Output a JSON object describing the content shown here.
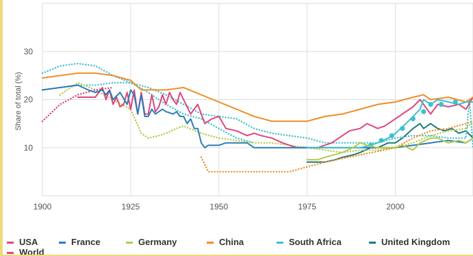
{
  "chart_data": {
    "type": "line",
    "title": "",
    "xlabel": "",
    "ylabel": "Share of total (%)",
    "xlim": [
      1900,
      2022
    ],
    "ylim": [
      0,
      40
    ],
    "xticks": [
      1900,
      1925,
      1950,
      1975,
      2000
    ],
    "yticks": [
      10,
      20,
      30
    ],
    "grid": true,
    "legend_position": "bottom",
    "series": [
      {
        "name": "USA",
        "color": "#e0457b",
        "style": "solid",
        "x": [
          1910,
          1915,
          1917,
          1918,
          1919,
          1920,
          1921,
          1922,
          1923,
          1924,
          1925,
          1926,
          1927,
          1928,
          1929,
          1930,
          1931,
          1932,
          1933,
          1934,
          1935,
          1936,
          1937,
          1938,
          1939,
          1940,
          1942,
          1944,
          1946,
          1948,
          1950,
          1952,
          1955,
          1958,
          1960,
          1962,
          1965,
          1968,
          1970,
          1972,
          1975,
          1978,
          1980,
          1982,
          1985,
          1987,
          1990,
          1992,
          1995,
          1997,
          2000,
          2002,
          2005,
          2007,
          2010,
          2012,
          2015,
          2018,
          2020,
          2022
        ],
        "y": [
          20.5,
          20.5,
          22.5,
          20,
          22,
          19,
          20.5,
          18.5,
          19,
          21.5,
          18,
          22,
          17,
          21.5,
          17,
          17,
          21,
          17.5,
          18.5,
          21,
          19,
          21.5,
          20,
          19,
          21.5,
          20,
          17,
          19,
          15,
          16,
          16.5,
          14,
          13.5,
          12.5,
          13,
          12.5,
          12,
          11,
          10.5,
          10,
          10,
          10,
          10.5,
          11,
          12.5,
          13.5,
          14,
          15,
          14,
          14.5,
          16,
          17,
          18.5,
          20,
          17,
          19,
          18.5,
          19,
          18,
          20.5
        ]
      },
      {
        "name": "World",
        "color": "#e0457b",
        "style": "dotted",
        "x": [
          1900,
          1905,
          1910,
          1915,
          1920
        ],
        "y": [
          15.5,
          19,
          21,
          22,
          22.5
        ]
      },
      {
        "name": "France",
        "color": "#2c7bb6",
        "style": "solid",
        "x": [
          1900,
          1905,
          1910,
          1913,
          1915,
          1917,
          1918,
          1919,
          1920,
          1922,
          1924,
          1925,
          1926,
          1927,
          1928,
          1929,
          1930,
          1931,
          1932,
          1933,
          1934,
          1935,
          1937,
          1938,
          1939,
          1940,
          1941,
          1942,
          1943,
          1944,
          1945,
          1946,
          1947,
          1948,
          1950,
          1952,
          1955,
          1958,
          1960,
          1965,
          1970,
          1975,
          1978,
          1980,
          1985,
          1990,
          1995,
          2000,
          2005,
          2010,
          2015,
          2020,
          2022
        ],
        "y": [
          22,
          22.5,
          23,
          22,
          21.5,
          22,
          21,
          22,
          20,
          21.5,
          19,
          22,
          21,
          17,
          21,
          16.5,
          16.5,
          18,
          17,
          17.5,
          18,
          17.5,
          17,
          17.5,
          16.5,
          16.5,
          15,
          16,
          14,
          14,
          11,
          10,
          10.5,
          10.5,
          10.5,
          11,
          11,
          11,
          10,
          10,
          10,
          10,
          10,
          10,
          10,
          10,
          10,
          10,
          10.5,
          11,
          11.5,
          11,
          12
        ]
      },
      {
        "name": "Germany",
        "color": "#b5c94a",
        "style": "solid",
        "x": [
          1975,
          1978,
          1980,
          1985,
          1988,
          1990,
          1992,
          1995,
          2000,
          2002,
          2005,
          2007,
          2010,
          2012,
          2015,
          2018,
          2020,
          2022
        ],
        "y": [
          7.5,
          7.5,
          8,
          9,
          10,
          11,
          10.5,
          10,
          10,
          10.5,
          9.5,
          11,
          12,
          12,
          11,
          11.5,
          11,
          12
        ]
      },
      {
        "name": "Germany (dotted)",
        "color": "#b5c94a",
        "style": "dotted",
        "x": [
          1905,
          1910,
          1915,
          1920,
          1925,
          1928,
          1930,
          1933,
          1935,
          1938,
          1940,
          1945,
          1950,
          1955,
          1960,
          1965,
          1970,
          1975,
          1980,
          1985,
          1990,
          1995,
          2000,
          2005,
          2010,
          2015,
          2020,
          2022
        ],
        "y": [
          21,
          23.5,
          22,
          20,
          18,
          13,
          12,
          12.5,
          13,
          14,
          14.5,
          13,
          12,
          11.5,
          11,
          11,
          10.5,
          10,
          9.5,
          9,
          9.5,
          9.5,
          10,
          11,
          12.5,
          13.5,
          14,
          15.5
        ]
      },
      {
        "name": "China",
        "color": "#f28c28",
        "style": "solid",
        "x": [
          1900,
          1905,
          1910,
          1915,
          1920,
          1925,
          1928,
          1930,
          1935,
          1940,
          1945,
          1950,
          1955,
          1960,
          1965,
          1970,
          1975,
          1980,
          1985,
          1990,
          1995,
          2000,
          2005,
          2008,
          2010,
          2015,
          2020,
          2022
        ],
        "y": [
          24.5,
          25,
          25.5,
          25.5,
          25,
          24,
          22,
          22,
          22,
          22.5,
          21,
          19.5,
          18,
          16.5,
          15.5,
          15.5,
          15.5,
          16.5,
          17,
          18,
          19,
          19.5,
          20.5,
          21,
          20,
          20.5,
          19.5,
          20.5
        ]
      },
      {
        "name": "China (dotted)",
        "color": "#f28c28",
        "style": "dotted",
        "x": [
          1945,
          1947,
          1950,
          1955,
          1960,
          1965,
          1970,
          1975,
          1980,
          1990,
          2000,
          2005,
          2010,
          2015,
          2020,
          2022
        ],
        "y": [
          8,
          5,
          5,
          5,
          5,
          5,
          5,
          6,
          7,
          8.5,
          10,
          12,
          13.5,
          14,
          15,
          15.5
        ]
      },
      {
        "name": "South Africa",
        "color": "#3cc0d0",
        "style": "solid",
        "x": [
          1975,
          1980,
          1985,
          1990,
          1993,
          1995,
          1998,
          2000,
          2003,
          2005,
          2007,
          2008,
          2010,
          2012,
          2015,
          2018,
          2020,
          2022
        ],
        "y": [
          10,
          10,
          10,
          10,
          10.5,
          11,
          12,
          13,
          15,
          16.5,
          18,
          20,
          19,
          20,
          19.5,
          19,
          19.5,
          19.5
        ],
        "markers_x": [
          1993,
          1996,
          1999,
          2002,
          2005,
          2008,
          2010,
          2013,
          2017
        ],
        "markers_y": [
          10.5,
          11.5,
          12.5,
          14,
          16,
          17.5,
          19,
          19,
          19.5
        ]
      },
      {
        "name": "South Africa (dotted A)",
        "color": "#3cc0d0",
        "style": "dotted",
        "x": [
          1900,
          1905,
          1910,
          1915,
          1920,
          1925,
          1930,
          1935,
          1940,
          1945,
          1950,
          1955,
          1960
        ],
        "y": [
          25.5,
          27,
          27.5,
          27,
          25,
          23.5,
          21.5,
          19,
          17,
          16,
          14,
          12,
          11
        ]
      },
      {
        "name": "South Africa (dotted B)",
        "color": "#3cc0d0",
        "style": "dotted",
        "x": [
          1900,
          1905,
          1910,
          1915,
          1920,
          1925,
          1930,
          1935,
          1940,
          1945,
          1950,
          1955,
          1960,
          1965,
          1970,
          1975,
          1980,
          1985,
          1990,
          1995,
          2000,
          2005,
          2010,
          2015,
          2020,
          2021,
          2022
        ],
        "y": [
          22,
          22.5,
          23,
          23,
          23.5,
          23.5,
          22.5,
          21,
          19,
          17,
          16.5,
          16,
          14,
          13,
          12.5,
          12,
          11,
          11,
          11,
          11,
          12,
          12.5,
          12.5,
          12,
          12,
          20,
          10
        ]
      },
      {
        "name": "United Kingdom",
        "color": "#1b7a7a",
        "style": "solid",
        "x": [
          1975,
          1978,
          1980,
          1983,
          1985,
          1988,
          1990,
          1993,
          1995,
          1998,
          2000,
          2002,
          2005,
          2007,
          2008,
          2010,
          2012,
          2014,
          2016,
          2018,
          2020,
          2022
        ],
        "y": [
          7,
          7,
          7,
          7.5,
          8,
          8.5,
          9,
          10,
          10,
          11,
          11,
          12,
          14,
          15,
          14,
          15,
          14,
          13.5,
          14,
          13,
          13.5,
          12
        ]
      },
      {
        "name": "United Kingdom (dotted)",
        "color": "#1b7a7a",
        "style": "dotted",
        "x": [
          1900,
          1905,
          1910,
          1915,
          1920,
          1925,
          1930,
          1935,
          1940,
          1945,
          1950,
          1955,
          1960,
          1965,
          1970,
          1975,
          1980,
          1985,
          1990,
          1995,
          2000,
          2005,
          2010,
          2015,
          2020,
          2022
        ],
        "y": [
          31,
          31,
          30.5,
          29,
          27,
          24,
          22,
          20,
          17.5,
          13,
          12,
          11.5,
          11,
          11,
          10,
          9.5,
          7.5,
          8,
          9,
          9.5,
          10.5,
          12,
          13,
          14,
          14,
          13
        ]
      }
    ],
    "legend": [
      {
        "label": "USA",
        "color": "#e0457b"
      },
      {
        "label": "France",
        "color": "#2c7bb6"
      },
      {
        "label": "Germany",
        "color": "#b5c94a"
      },
      {
        "label": "China",
        "color": "#f28c28"
      },
      {
        "label": "South Africa",
        "color": "#3cc0d0"
      },
      {
        "label": "United Kingdom",
        "color": "#1b7a7a"
      },
      {
        "label": "World",
        "color": "#e0457b"
      }
    ]
  }
}
